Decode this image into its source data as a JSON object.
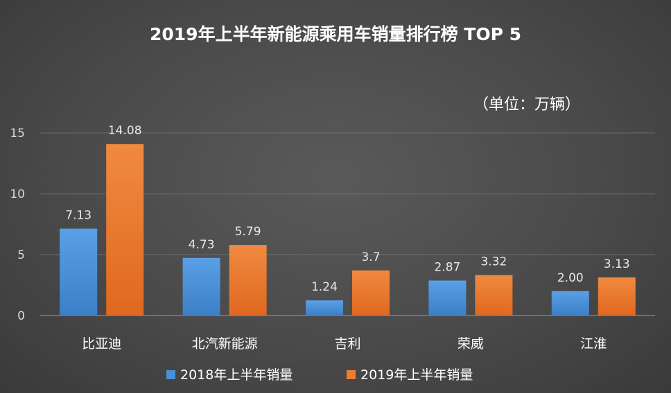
{
  "chart_data": {
    "type": "bar",
    "title": "2019年上半年新能源乘用车销量排行榜 TOP 5",
    "unit_note": "（单位：万辆）",
    "categories": [
      "比亚迪",
      "北汽新能源",
      "吉利",
      "荣威",
      "江淮"
    ],
    "series": [
      {
        "name": "2018年上半年销量",
        "color": "#4a90d9",
        "values": [
          7.13,
          4.73,
          1.24,
          2.87,
          2.0
        ],
        "labels": [
          "7.13",
          "4.73",
          "1.24",
          "2.87",
          "2.00"
        ]
      },
      {
        "name": "2019年上半年销量",
        "color": "#ed7d31",
        "values": [
          14.08,
          5.79,
          3.7,
          3.32,
          3.13
        ],
        "labels": [
          "14.08",
          "5.79",
          "3.7",
          "3.32",
          "3.13"
        ]
      }
    ],
    "ylim": [
      0,
      15
    ],
    "yticks": [
      "0",
      "5",
      "10",
      "15"
    ],
    "grid": true,
    "legend": "bottom"
  }
}
